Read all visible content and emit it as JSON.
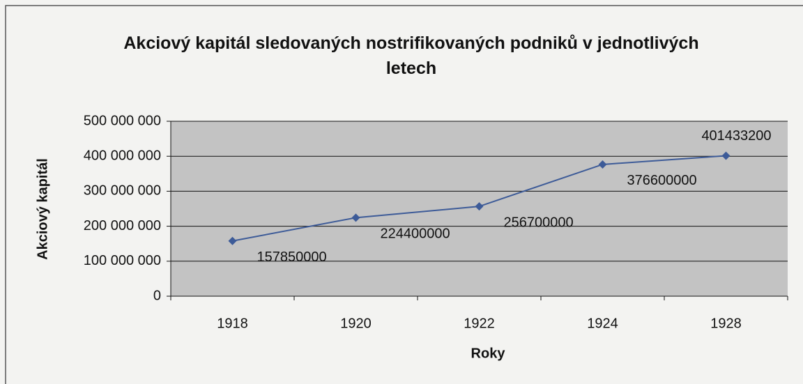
{
  "chart_data": {
    "type": "line",
    "title": "Akciový kapitál sledovaných nostrifikovaných podniků v jednotlivých letech",
    "xlabel": "Roky",
    "ylabel": "Akciový kapitál",
    "categories": [
      "1918",
      "1920",
      "1922",
      "1924",
      "1928"
    ],
    "series": [
      {
        "name": "Akciový kapitál",
        "color": "#3d5b98",
        "values": [
          157850000,
          224400000,
          256700000,
          376600000,
          401433200
        ]
      }
    ],
    "ylim": [
      0,
      500000000
    ],
    "yticks": [
      0,
      {
        "value": 100000000,
        "label": "100 000 000"
      },
      {
        "value": 200000000,
        "label": "200 000 000"
      },
      {
        "value": 300000000,
        "label": "300 000 000"
      },
      {
        "value": 400000000,
        "label": "400 000 000"
      },
      {
        "value": 500000000,
        "label": "500 000 000"
      }
    ],
    "grid": true,
    "data_labels": true
  }
}
